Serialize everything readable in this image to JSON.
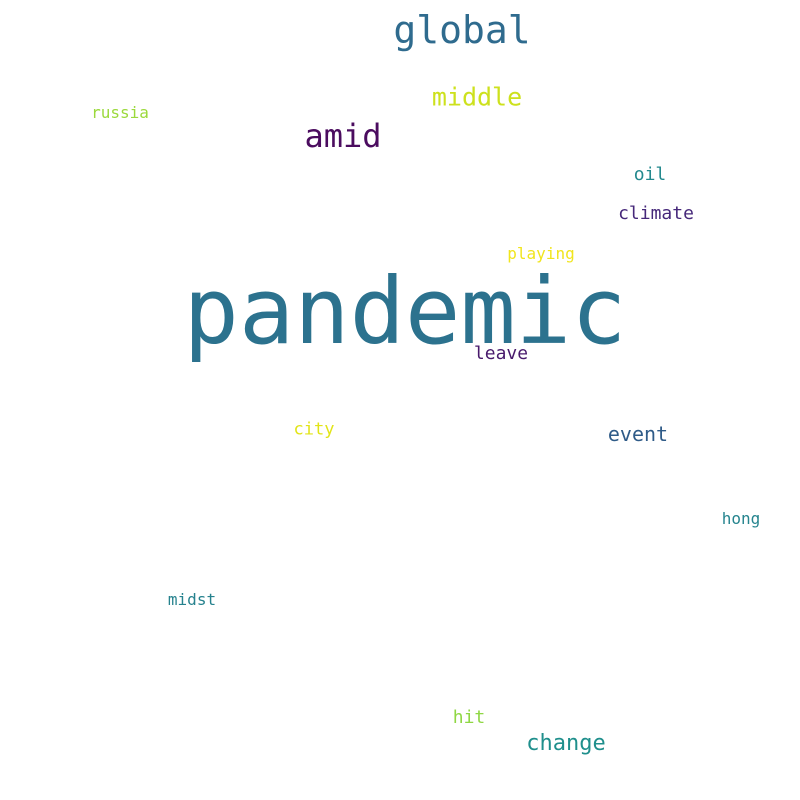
{
  "words": [
    {
      "id": "pandemic",
      "text": "pandemic",
      "color": "#2c728e"
    },
    {
      "id": "global",
      "text": "global",
      "color": "#2f6b8e"
    },
    {
      "id": "amid",
      "text": "amid",
      "color": "#4b0c5f"
    },
    {
      "id": "middle",
      "text": "middle",
      "color": "#cde11d"
    },
    {
      "id": "change",
      "text": "change",
      "color": "#1f8f8c"
    },
    {
      "id": "event",
      "text": "event",
      "color": "#2f5b88"
    },
    {
      "id": "climate",
      "text": "climate",
      "color": "#46287a"
    },
    {
      "id": "oil",
      "text": "oil",
      "color": "#23898e"
    },
    {
      "id": "leave",
      "text": "leave",
      "color": "#481a6c"
    },
    {
      "id": "hit",
      "text": "hit",
      "color": "#8fd744"
    },
    {
      "id": "city",
      "text": "city",
      "color": "#e2e418"
    },
    {
      "id": "playing",
      "text": "playing",
      "color": "#f1e51d"
    },
    {
      "id": "russia",
      "text": "russia",
      "color": "#9bd93c"
    },
    {
      "id": "hong",
      "text": "hong",
      "color": "#25848e"
    },
    {
      "id": "midst",
      "text": "midst",
      "color": "#26828e"
    }
  ]
}
